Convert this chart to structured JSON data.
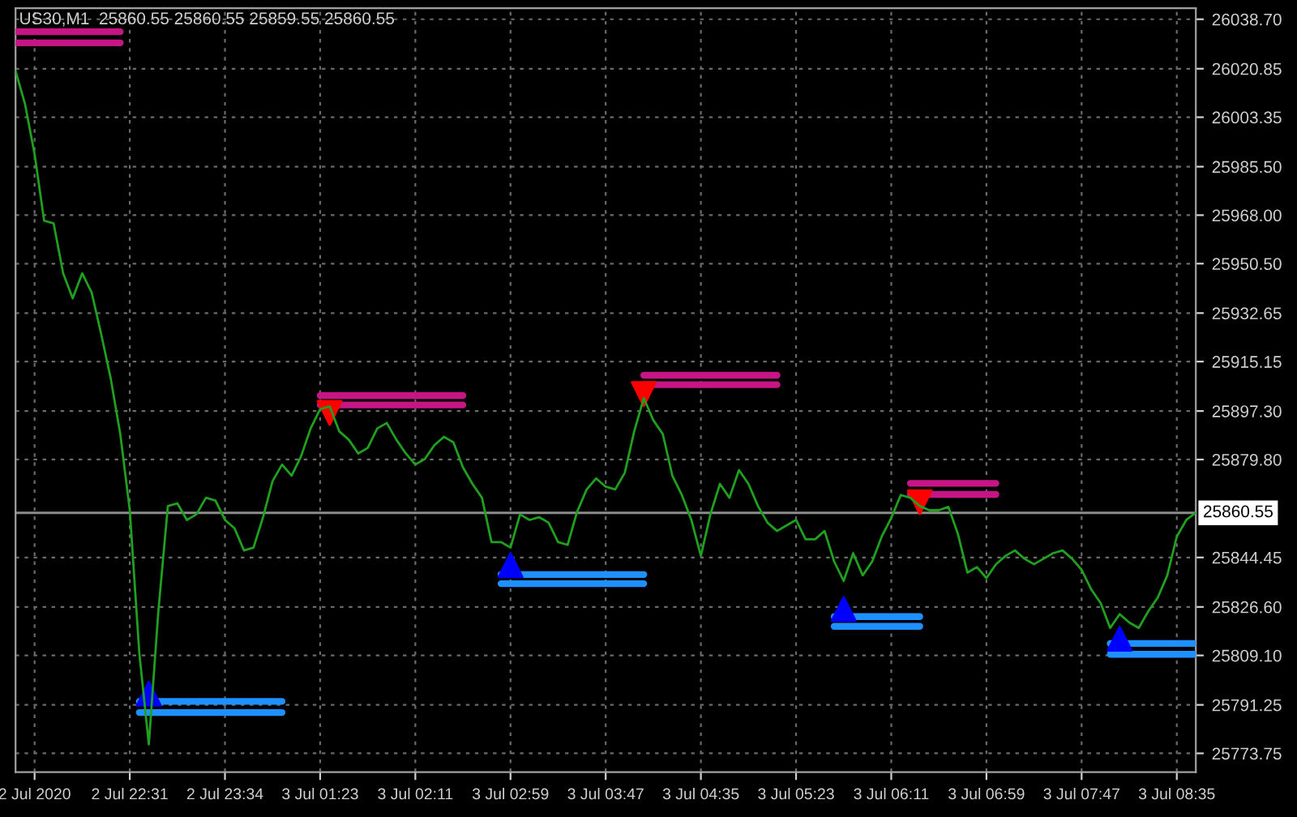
{
  "chart_data": {
    "type": "line",
    "title": "US30,M1  25860.55 25860.55 25859.55 25860.55",
    "categories": [
      null,
      null,
      "2 Jul 2020",
      null,
      null,
      null,
      null,
      null,
      null,
      null,
      null,
      null,
      "2 Jul 22:31",
      null,
      null,
      null,
      null,
      null,
      null,
      null,
      null,
      null,
      "2 Jul 23:34",
      null,
      null,
      null,
      null,
      null,
      null,
      null,
      null,
      null,
      "3 Jul 01:23",
      null,
      null,
      null,
      null,
      null,
      null,
      null,
      null,
      null,
      "3 Jul 02:11",
      null,
      null,
      null,
      null,
      null,
      null,
      null,
      null,
      null,
      "3 Jul 02:59",
      null,
      null,
      null,
      null,
      null,
      null,
      null,
      null,
      null,
      "3 Jul 03:47",
      null,
      null,
      null,
      null,
      null,
      null,
      null,
      null,
      null,
      "3 Jul 04:35",
      null,
      null,
      null,
      null,
      null,
      null,
      null,
      null,
      null,
      "3 Jul 05:23",
      null,
      null,
      null,
      null,
      null,
      null,
      null,
      null,
      null,
      "3 Jul 06:11",
      null,
      null,
      null,
      null,
      null,
      null,
      null,
      null,
      null,
      "3 Jul 06:59",
      null,
      null,
      null,
      null,
      null,
      null,
      null,
      null,
      null,
      "3 Jul 07:47",
      null,
      null,
      null,
      null,
      null,
      null,
      null,
      null,
      null,
      "3 Jul 08:35",
      null,
      null
    ],
    "ylim": [
      25767,
      26042.7
    ],
    "yticks": [
      {
        "value": 25773.75,
        "label": "25773.75"
      },
      {
        "value": 25791.25,
        "label": "25791.25"
      },
      {
        "value": 25809.1,
        "label": "25809.10"
      },
      {
        "value": 25826.6,
        "label": "25826.60"
      },
      {
        "value": 25844.45,
        "label": "25844.45"
      },
      {
        "value": 25879.8,
        "label": "25879.80"
      },
      {
        "value": 25897.3,
        "label": "25897.30"
      },
      {
        "value": 25915.15,
        "label": "25915.15"
      },
      {
        "value": 25932.65,
        "label": "25932.65"
      },
      {
        "value": 25950.5,
        "label": "25950.50"
      },
      {
        "value": 25968.0,
        "label": "25968.00"
      },
      {
        "value": 25985.5,
        "label": "25985.50"
      },
      {
        "value": 26003.35,
        "label": "26003.35"
      },
      {
        "value": 26020.85,
        "label": "26020.85"
      },
      {
        "value": 26038.7,
        "label": "26038.70"
      }
    ],
    "grid": true,
    "ref_lines": [
      {
        "axis": "y",
        "value": 25860.55,
        "label": "25860.55",
        "color": "#8c8c8c"
      }
    ],
    "series": [
      {
        "color": "#1fa01f",
        "values": [
          26020,
          26008,
          25990,
          25966,
          25965,
          25947,
          25938,
          25947,
          25940,
          25925,
          25909,
          25889,
          25861.5,
          25810,
          25777,
          25825,
          25863,
          25864,
          25858,
          25860,
          25866,
          25865,
          25858,
          25855,
          25847,
          25848,
          25859,
          25872,
          25878,
          25874,
          25881,
          25891,
          25898,
          25899,
          25890,
          25887,
          25882,
          25884,
          25891,
          25893,
          25887,
          25882,
          25878,
          25880,
          25885,
          25888,
          25886,
          25877,
          25871,
          25866,
          25850,
          25850,
          25848,
          25860,
          25858,
          25859,
          25857,
          25850,
          25849,
          25861,
          25869,
          25873,
          25870,
          25869,
          25875,
          25890,
          25902,
          25894,
          25889,
          25874,
          25867,
          25858,
          25845,
          25860,
          25871,
          25866,
          25876,
          25871,
          25863,
          25857,
          25854,
          25856,
          25858,
          25851,
          25851,
          25854,
          25843,
          25836,
          25846,
          25838,
          25843,
          25852,
          25858.7,
          25867,
          25866,
          25863,
          25861.5,
          25861.5,
          25862.7,
          25853,
          25839,
          25841,
          25837,
          25842,
          25845,
          25847,
          25844,
          25842,
          25844,
          25846,
          25847,
          25844,
          25840,
          25833,
          25828,
          25819,
          25824,
          25821,
          25819,
          25825,
          25830,
          25838,
          25852,
          25858,
          25860.6
        ]
      },
      {
        "type": "line",
        "color": "#c71585",
        "values": [
          26034.2,
          26034.2,
          26034.2,
          26034.2,
          26034.2,
          26034.2,
          26034.2,
          26034.2,
          26034.2,
          26034.2,
          26034.2,
          26034.2,
          null,
          null,
          null,
          null,
          null,
          null,
          null,
          null,
          null,
          null,
          null,
          null,
          null,
          null,
          null,
          null,
          null,
          null,
          null,
          null,
          25902.9,
          25902.9,
          25902.9,
          25902.9,
          25902.9,
          25902.9,
          25902.9,
          25902.9,
          25902.9,
          25902.9,
          25902.9,
          25902.9,
          25902.9,
          25902.9,
          25902.9,
          25902.9,
          null,
          null,
          null,
          null,
          null,
          null,
          null,
          null,
          null,
          null,
          null,
          null,
          null,
          null,
          null,
          null,
          null,
          null,
          25910.2,
          25910.2,
          25910.2,
          25910.2,
          25910.2,
          25910.2,
          25910.2,
          25910.2,
          25910.2,
          25910.2,
          25910.2,
          25910.2,
          25910.2,
          25910.2,
          25910.2,
          null,
          null,
          null,
          null,
          null,
          null,
          null,
          null,
          null,
          null,
          null,
          null,
          null,
          25871.2,
          25871.2,
          25871.2,
          25871.2,
          25871.2,
          25871.2,
          25871.2,
          25871.2,
          25871.2,
          25871.2,
          null,
          null,
          null,
          null,
          null,
          null,
          null,
          null,
          null,
          null,
          null,
          null,
          null,
          null,
          null,
          null,
          null,
          null,
          null,
          null,
          null
        ]
      },
      {
        "type": "line",
        "color": "#c71585",
        "values": [
          26030.2,
          26030.2,
          26030.2,
          26030.2,
          26030.2,
          26030.2,
          26030.2,
          26030.2,
          26030.2,
          26030.2,
          26030.2,
          26030.2,
          null,
          null,
          null,
          null,
          null,
          null,
          null,
          null,
          null,
          null,
          null,
          null,
          null,
          null,
          null,
          null,
          null,
          null,
          null,
          null,
          25899.5,
          25899.5,
          25899.5,
          25899.5,
          25899.5,
          25899.5,
          25899.5,
          25899.5,
          25899.5,
          25899.5,
          25899.5,
          25899.5,
          25899.5,
          25899.5,
          25899.5,
          25899.5,
          null,
          null,
          null,
          null,
          null,
          null,
          null,
          null,
          null,
          null,
          null,
          null,
          null,
          null,
          null,
          null,
          null,
          null,
          25906.8,
          25906.8,
          25906.8,
          25906.8,
          25906.8,
          25906.8,
          25906.8,
          25906.8,
          25906.8,
          25906.8,
          25906.8,
          25906.8,
          25906.8,
          25906.8,
          25906.8,
          null,
          null,
          null,
          null,
          null,
          null,
          null,
          null,
          null,
          null,
          null,
          null,
          null,
          25867.2,
          25867.2,
          25867.2,
          25867.2,
          25867.2,
          25867.2,
          25867.2,
          25867.2,
          25867.2,
          25867.2,
          null,
          null,
          null,
          null,
          null,
          null,
          null,
          null,
          null,
          null,
          null,
          null,
          null,
          null,
          null,
          null,
          null,
          null,
          null,
          null,
          null
        ]
      },
      {
        "type": "line",
        "color": "#1e90ff",
        "values": [
          null,
          null,
          null,
          null,
          null,
          null,
          null,
          null,
          null,
          null,
          null,
          null,
          null,
          25792.5,
          25792.5,
          25792.5,
          25792.5,
          25792.5,
          25792.5,
          25792.5,
          25792.5,
          25792.5,
          25792.5,
          25792.5,
          25792.5,
          25792.5,
          25792.5,
          25792.5,
          25792.5,
          null,
          null,
          null,
          null,
          null,
          null,
          null,
          null,
          null,
          null,
          null,
          null,
          null,
          null,
          null,
          null,
          null,
          null,
          null,
          null,
          null,
          null,
          25838.3,
          25838.3,
          25838.3,
          25838.3,
          25838.3,
          25838.3,
          25838.3,
          25838.3,
          25838.3,
          25838.3,
          25838.3,
          25838.3,
          25838.3,
          25838.3,
          25838.3,
          25838.3,
          null,
          null,
          null,
          null,
          null,
          null,
          null,
          null,
          null,
          null,
          null,
          null,
          null,
          null,
          null,
          null,
          null,
          null,
          null,
          25823.1,
          25823.1,
          25823.1,
          25823.1,
          25823.1,
          25823.1,
          25823.1,
          25823.1,
          25823.1,
          25823.1,
          null,
          null,
          null,
          null,
          null,
          null,
          null,
          null,
          null,
          null,
          null,
          null,
          null,
          null,
          null,
          null,
          null,
          null,
          null,
          25813.4,
          25813.4,
          25813.4,
          25813.4,
          25813.4,
          25813.4,
          25813.4,
          25813.4,
          25813.4,
          25813.4
        ]
      },
      {
        "type": "line",
        "color": "#1e90ff",
        "values": [
          null,
          null,
          null,
          null,
          null,
          null,
          null,
          null,
          null,
          null,
          null,
          null,
          null,
          25788.5,
          25788.5,
          25788.5,
          25788.5,
          25788.5,
          25788.5,
          25788.5,
          25788.5,
          25788.5,
          25788.5,
          25788.5,
          25788.5,
          25788.5,
          25788.5,
          25788.5,
          25788.5,
          null,
          null,
          null,
          null,
          null,
          null,
          null,
          null,
          null,
          null,
          null,
          null,
          null,
          null,
          null,
          null,
          null,
          null,
          null,
          null,
          null,
          null,
          25835.0,
          25835.0,
          25835.0,
          25835.0,
          25835.0,
          25835.0,
          25835.0,
          25835.0,
          25835.0,
          25835.0,
          25835.0,
          25835.0,
          25835.0,
          25835.0,
          25835.0,
          25835.0,
          null,
          null,
          null,
          null,
          null,
          null,
          null,
          null,
          null,
          null,
          null,
          null,
          null,
          null,
          null,
          null,
          null,
          null,
          null,
          25819.6,
          25819.6,
          25819.6,
          25819.6,
          25819.6,
          25819.6,
          25819.6,
          25819.6,
          25819.6,
          25819.6,
          null,
          null,
          null,
          null,
          null,
          null,
          null,
          null,
          null,
          null,
          null,
          null,
          null,
          null,
          null,
          null,
          null,
          null,
          null,
          25809.5,
          25809.5,
          25809.5,
          25809.5,
          25809.5,
          25809.5,
          25809.5,
          25809.5,
          25809.5,
          25809.5
        ]
      },
      {
        "type": "scatter",
        "marker": "triangle_down",
        "color": "#ff0000",
        "values": [
          null,
          null,
          null,
          null,
          null,
          null,
          null,
          null,
          null,
          null,
          null,
          null,
          null,
          null,
          null,
          null,
          null,
          null,
          null,
          null,
          null,
          null,
          null,
          null,
          null,
          null,
          null,
          null,
          null,
          null,
          null,
          null,
          null,
          25896.6,
          null,
          null,
          null,
          null,
          null,
          null,
          null,
          null,
          null,
          null,
          null,
          null,
          null,
          null,
          null,
          null,
          null,
          null,
          null,
          null,
          null,
          null,
          null,
          null,
          null,
          null,
          null,
          null,
          null,
          null,
          null,
          null,
          25903.4,
          null,
          null,
          null,
          null,
          null,
          null,
          null,
          null,
          null,
          null,
          null,
          null,
          null,
          null,
          null,
          null,
          null,
          null,
          null,
          null,
          null,
          null,
          null,
          null,
          null,
          null,
          null,
          null,
          25864.4,
          null,
          null,
          null,
          null,
          null,
          null,
          null,
          null,
          null,
          null,
          null,
          null,
          null,
          null,
          null,
          null,
          null,
          null,
          null,
          null,
          null,
          null,
          null,
          null,
          null,
          null,
          null,
          null,
          null
        ]
      },
      {
        "type": "scatter",
        "marker": "triangle",
        "color": "#0000ff",
        "values": [
          null,
          null,
          null,
          null,
          null,
          null,
          null,
          null,
          null,
          null,
          null,
          null,
          null,
          null,
          25795.3,
          null,
          null,
          null,
          null,
          null,
          null,
          null,
          null,
          null,
          null,
          null,
          null,
          null,
          null,
          null,
          null,
          null,
          null,
          null,
          null,
          null,
          null,
          null,
          null,
          null,
          null,
          null,
          null,
          null,
          null,
          null,
          null,
          null,
          null,
          null,
          null,
          null,
          25841.7,
          null,
          null,
          null,
          null,
          null,
          null,
          null,
          null,
          null,
          null,
          null,
          null,
          null,
          null,
          null,
          null,
          null,
          null,
          null,
          null,
          null,
          null,
          null,
          null,
          null,
          null,
          null,
          null,
          null,
          null,
          null,
          null,
          null,
          null,
          25825.9,
          null,
          null,
          null,
          null,
          null,
          null,
          null,
          null,
          null,
          null,
          null,
          null,
          null,
          null,
          null,
          null,
          null,
          null,
          null,
          null,
          null,
          null,
          null,
          null,
          null,
          null,
          null,
          null,
          25815.1,
          null,
          null,
          null,
          null,
          null,
          null,
          null,
          null
        ]
      }
    ]
  }
}
